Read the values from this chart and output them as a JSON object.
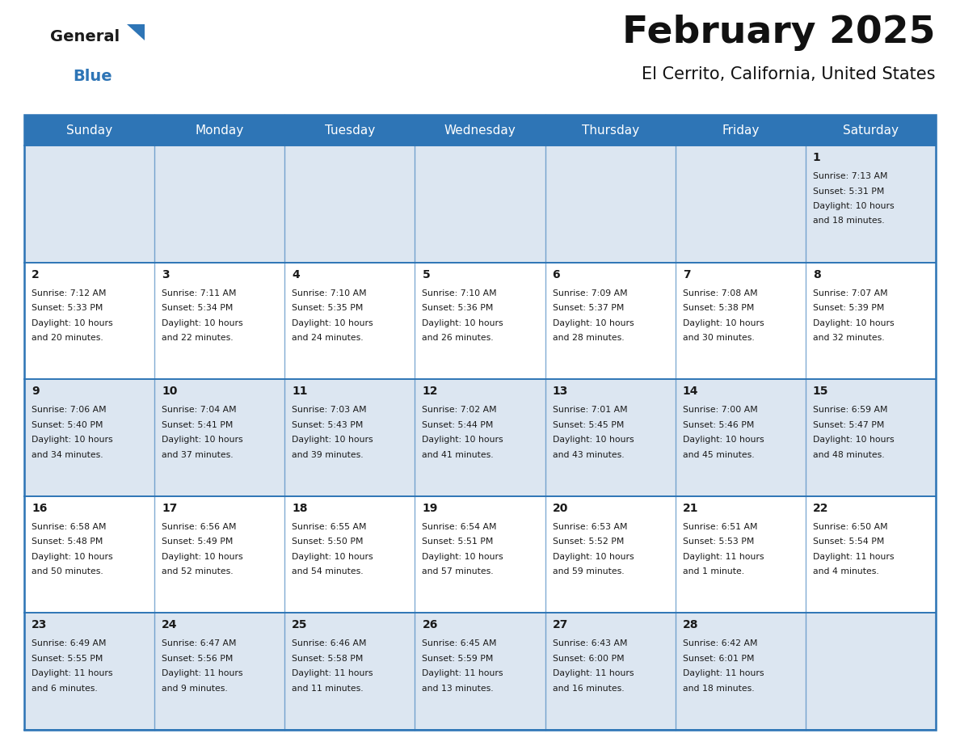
{
  "title": "February 2025",
  "subtitle": "El Cerrito, California, United States",
  "header_color": "#2e75b6",
  "header_text_color": "#ffffff",
  "cell_bg_odd": "#dce6f1",
  "cell_bg_even": "#ffffff",
  "border_color": "#2e75b6",
  "text_color": "#1a1a1a",
  "day_number_color": "#1a1a1a",
  "day_headers": [
    "Sunday",
    "Monday",
    "Tuesday",
    "Wednesday",
    "Thursday",
    "Friday",
    "Saturday"
  ],
  "weeks": [
    [
      {
        "day": null,
        "info": null
      },
      {
        "day": null,
        "info": null
      },
      {
        "day": null,
        "info": null
      },
      {
        "day": null,
        "info": null
      },
      {
        "day": null,
        "info": null
      },
      {
        "day": null,
        "info": null
      },
      {
        "day": "1",
        "info": "Sunrise: 7:13 AM\nSunset: 5:31 PM\nDaylight: 10 hours\nand 18 minutes."
      }
    ],
    [
      {
        "day": "2",
        "info": "Sunrise: 7:12 AM\nSunset: 5:33 PM\nDaylight: 10 hours\nand 20 minutes."
      },
      {
        "day": "3",
        "info": "Sunrise: 7:11 AM\nSunset: 5:34 PM\nDaylight: 10 hours\nand 22 minutes."
      },
      {
        "day": "4",
        "info": "Sunrise: 7:10 AM\nSunset: 5:35 PM\nDaylight: 10 hours\nand 24 minutes."
      },
      {
        "day": "5",
        "info": "Sunrise: 7:10 AM\nSunset: 5:36 PM\nDaylight: 10 hours\nand 26 minutes."
      },
      {
        "day": "6",
        "info": "Sunrise: 7:09 AM\nSunset: 5:37 PM\nDaylight: 10 hours\nand 28 minutes."
      },
      {
        "day": "7",
        "info": "Sunrise: 7:08 AM\nSunset: 5:38 PM\nDaylight: 10 hours\nand 30 minutes."
      },
      {
        "day": "8",
        "info": "Sunrise: 7:07 AM\nSunset: 5:39 PM\nDaylight: 10 hours\nand 32 minutes."
      }
    ],
    [
      {
        "day": "9",
        "info": "Sunrise: 7:06 AM\nSunset: 5:40 PM\nDaylight: 10 hours\nand 34 minutes."
      },
      {
        "day": "10",
        "info": "Sunrise: 7:04 AM\nSunset: 5:41 PM\nDaylight: 10 hours\nand 37 minutes."
      },
      {
        "day": "11",
        "info": "Sunrise: 7:03 AM\nSunset: 5:43 PM\nDaylight: 10 hours\nand 39 minutes."
      },
      {
        "day": "12",
        "info": "Sunrise: 7:02 AM\nSunset: 5:44 PM\nDaylight: 10 hours\nand 41 minutes."
      },
      {
        "day": "13",
        "info": "Sunrise: 7:01 AM\nSunset: 5:45 PM\nDaylight: 10 hours\nand 43 minutes."
      },
      {
        "day": "14",
        "info": "Sunrise: 7:00 AM\nSunset: 5:46 PM\nDaylight: 10 hours\nand 45 minutes."
      },
      {
        "day": "15",
        "info": "Sunrise: 6:59 AM\nSunset: 5:47 PM\nDaylight: 10 hours\nand 48 minutes."
      }
    ],
    [
      {
        "day": "16",
        "info": "Sunrise: 6:58 AM\nSunset: 5:48 PM\nDaylight: 10 hours\nand 50 minutes."
      },
      {
        "day": "17",
        "info": "Sunrise: 6:56 AM\nSunset: 5:49 PM\nDaylight: 10 hours\nand 52 minutes."
      },
      {
        "day": "18",
        "info": "Sunrise: 6:55 AM\nSunset: 5:50 PM\nDaylight: 10 hours\nand 54 minutes."
      },
      {
        "day": "19",
        "info": "Sunrise: 6:54 AM\nSunset: 5:51 PM\nDaylight: 10 hours\nand 57 minutes."
      },
      {
        "day": "20",
        "info": "Sunrise: 6:53 AM\nSunset: 5:52 PM\nDaylight: 10 hours\nand 59 minutes."
      },
      {
        "day": "21",
        "info": "Sunrise: 6:51 AM\nSunset: 5:53 PM\nDaylight: 11 hours\nand 1 minute."
      },
      {
        "day": "22",
        "info": "Sunrise: 6:50 AM\nSunset: 5:54 PM\nDaylight: 11 hours\nand 4 minutes."
      }
    ],
    [
      {
        "day": "23",
        "info": "Sunrise: 6:49 AM\nSunset: 5:55 PM\nDaylight: 11 hours\nand 6 minutes."
      },
      {
        "day": "24",
        "info": "Sunrise: 6:47 AM\nSunset: 5:56 PM\nDaylight: 11 hours\nand 9 minutes."
      },
      {
        "day": "25",
        "info": "Sunrise: 6:46 AM\nSunset: 5:58 PM\nDaylight: 11 hours\nand 11 minutes."
      },
      {
        "day": "26",
        "info": "Sunrise: 6:45 AM\nSunset: 5:59 PM\nDaylight: 11 hours\nand 13 minutes."
      },
      {
        "day": "27",
        "info": "Sunrise: 6:43 AM\nSunset: 6:00 PM\nDaylight: 11 hours\nand 16 minutes."
      },
      {
        "day": "28",
        "info": "Sunrise: 6:42 AM\nSunset: 6:01 PM\nDaylight: 11 hours\nand 18 minutes."
      },
      {
        "day": null,
        "info": null
      }
    ]
  ],
  "logo_general_color": "#1a1a1a",
  "logo_blue_color": "#2e75b6",
  "logo_triangle_color": "#2e75b6",
  "fig_width": 11.88,
  "fig_height": 9.18,
  "dpi": 100
}
